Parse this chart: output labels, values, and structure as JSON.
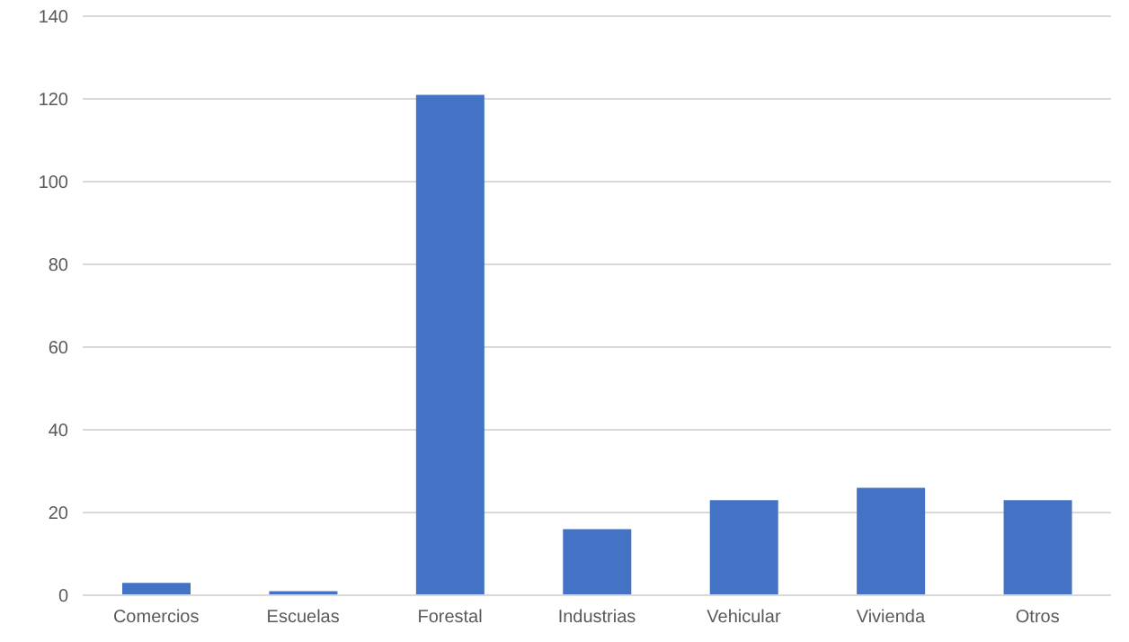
{
  "chart_data": {
    "type": "bar",
    "categories": [
      "Comercios",
      "Escuelas",
      "Forestal",
      "Industrias",
      "Vehicular",
      "Vivienda",
      "Otros"
    ],
    "values": [
      3,
      1,
      121,
      16,
      23,
      26,
      23
    ],
    "color": "#4472c4",
    "ylim": [
      0,
      140
    ],
    "yticks": [
      0,
      20,
      40,
      60,
      80,
      100,
      120,
      140
    ],
    "grid": "y"
  }
}
